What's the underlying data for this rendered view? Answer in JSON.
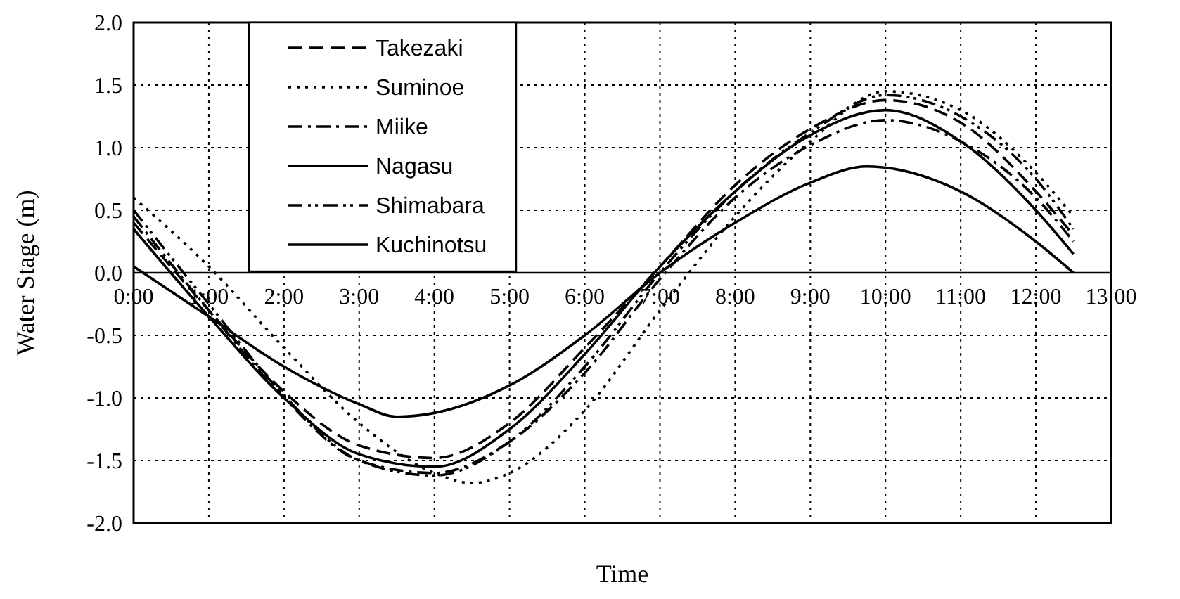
{
  "chart_data": {
    "type": "line",
    "xlabel": "Time",
    "ylabel": "Water Stage (m)",
    "xlim": [
      0,
      13
    ],
    "ylim": [
      -2,
      2
    ],
    "xticks": [
      {
        "value": 0,
        "label": "0:00"
      },
      {
        "value": 1,
        "label": "1:00"
      },
      {
        "value": 2,
        "label": "2:00"
      },
      {
        "value": 3,
        "label": "3:00"
      },
      {
        "value": 4,
        "label": "4:00"
      },
      {
        "value": 5,
        "label": "5:00"
      },
      {
        "value": 6,
        "label": "6:00"
      },
      {
        "value": 7,
        "label": "7:00"
      },
      {
        "value": 8,
        "label": "8:00"
      },
      {
        "value": 9,
        "label": "9:00"
      },
      {
        "value": 10,
        "label": "10:00"
      },
      {
        "value": 11,
        "label": "11:00"
      },
      {
        "value": 12,
        "label": "12:00"
      },
      {
        "value": 13,
        "label": "13:00"
      }
    ],
    "yticks": [
      {
        "value": -2,
        "label": "-2.0"
      },
      {
        "value": -1.5,
        "label": "-1.5"
      },
      {
        "value": -1,
        "label": "-1.0"
      },
      {
        "value": -0.5,
        "label": "-0.5"
      },
      {
        "value": 0,
        "label": "0.0"
      },
      {
        "value": 0.5,
        "label": "0.5"
      },
      {
        "value": 1,
        "label": "1.0"
      },
      {
        "value": 1.5,
        "label": "1.5"
      },
      {
        "value": 2,
        "label": "2.0"
      }
    ],
    "grid": true,
    "legend": "top left",
    "marker": "none",
    "series": [
      {
        "name": "Takezaki",
        "color": "#000000",
        "line_style": "dashed",
        "x": [
          0,
          1,
          2,
          3,
          4,
          5,
          6,
          7,
          8,
          9,
          10,
          11,
          12,
          12.5
        ],
        "values": [
          0.4,
          -0.3,
          -0.95,
          -1.38,
          -1.48,
          -1.2,
          -0.6,
          0.05,
          0.7,
          1.15,
          1.38,
          1.2,
          0.65,
          0.3
        ]
      },
      {
        "name": "Suminoe",
        "color": "#000000",
        "line_style": "dotted",
        "x": [
          0,
          1,
          2,
          3,
          4,
          4.5,
          5,
          6,
          7,
          8,
          9,
          10,
          11,
          12,
          12.5
        ],
        "values": [
          0.6,
          0.05,
          -0.6,
          -1.2,
          -1.6,
          -1.68,
          -1.6,
          -1.1,
          -0.3,
          0.45,
          1.05,
          1.45,
          1.3,
          0.8,
          0.45
        ]
      },
      {
        "name": "Miike",
        "color": "#000000",
        "line_style": "dashdot",
        "x": [
          0,
          1,
          2,
          3,
          4,
          5,
          6,
          7,
          8,
          9,
          10,
          11,
          12,
          12.5
        ],
        "values": [
          0.45,
          -0.3,
          -1.0,
          -1.5,
          -1.6,
          -1.35,
          -0.8,
          -0.05,
          0.6,
          1.02,
          1.22,
          1.05,
          0.6,
          0.25
        ]
      },
      {
        "name": "Nagasu",
        "color": "#000000",
        "line_style": "solid",
        "x": [
          0,
          1,
          2,
          3,
          4,
          5,
          6,
          7,
          8,
          9,
          10,
          11,
          12,
          12.5
        ],
        "values": [
          0.35,
          -0.35,
          -1.0,
          -1.45,
          -1.55,
          -1.25,
          -0.65,
          0.05,
          0.65,
          1.1,
          1.3,
          1.05,
          0.5,
          0.15
        ]
      },
      {
        "name": "Shimabara",
        "color": "#000000",
        "line_style": "dashdotdot",
        "x": [
          0,
          1,
          2,
          3,
          4,
          5,
          6,
          7,
          8,
          9,
          10,
          11,
          12,
          12.5
        ],
        "values": [
          0.5,
          -0.25,
          -0.98,
          -1.5,
          -1.62,
          -1.35,
          -0.75,
          0.0,
          0.65,
          1.12,
          1.42,
          1.25,
          0.75,
          0.35
        ]
      },
      {
        "name": "Kuchinotsu",
        "color": "#000000",
        "line_style": "solid",
        "x": [
          0,
          1,
          2,
          3,
          3.5,
          4,
          5,
          6,
          7,
          8,
          9,
          9.75,
          11,
          12,
          12.5
        ],
        "values": [
          0.05,
          -0.35,
          -0.75,
          -1.05,
          -1.15,
          -1.12,
          -0.9,
          -0.5,
          0.0,
          0.4,
          0.72,
          0.85,
          0.65,
          0.25,
          0.0
        ]
      }
    ]
  }
}
